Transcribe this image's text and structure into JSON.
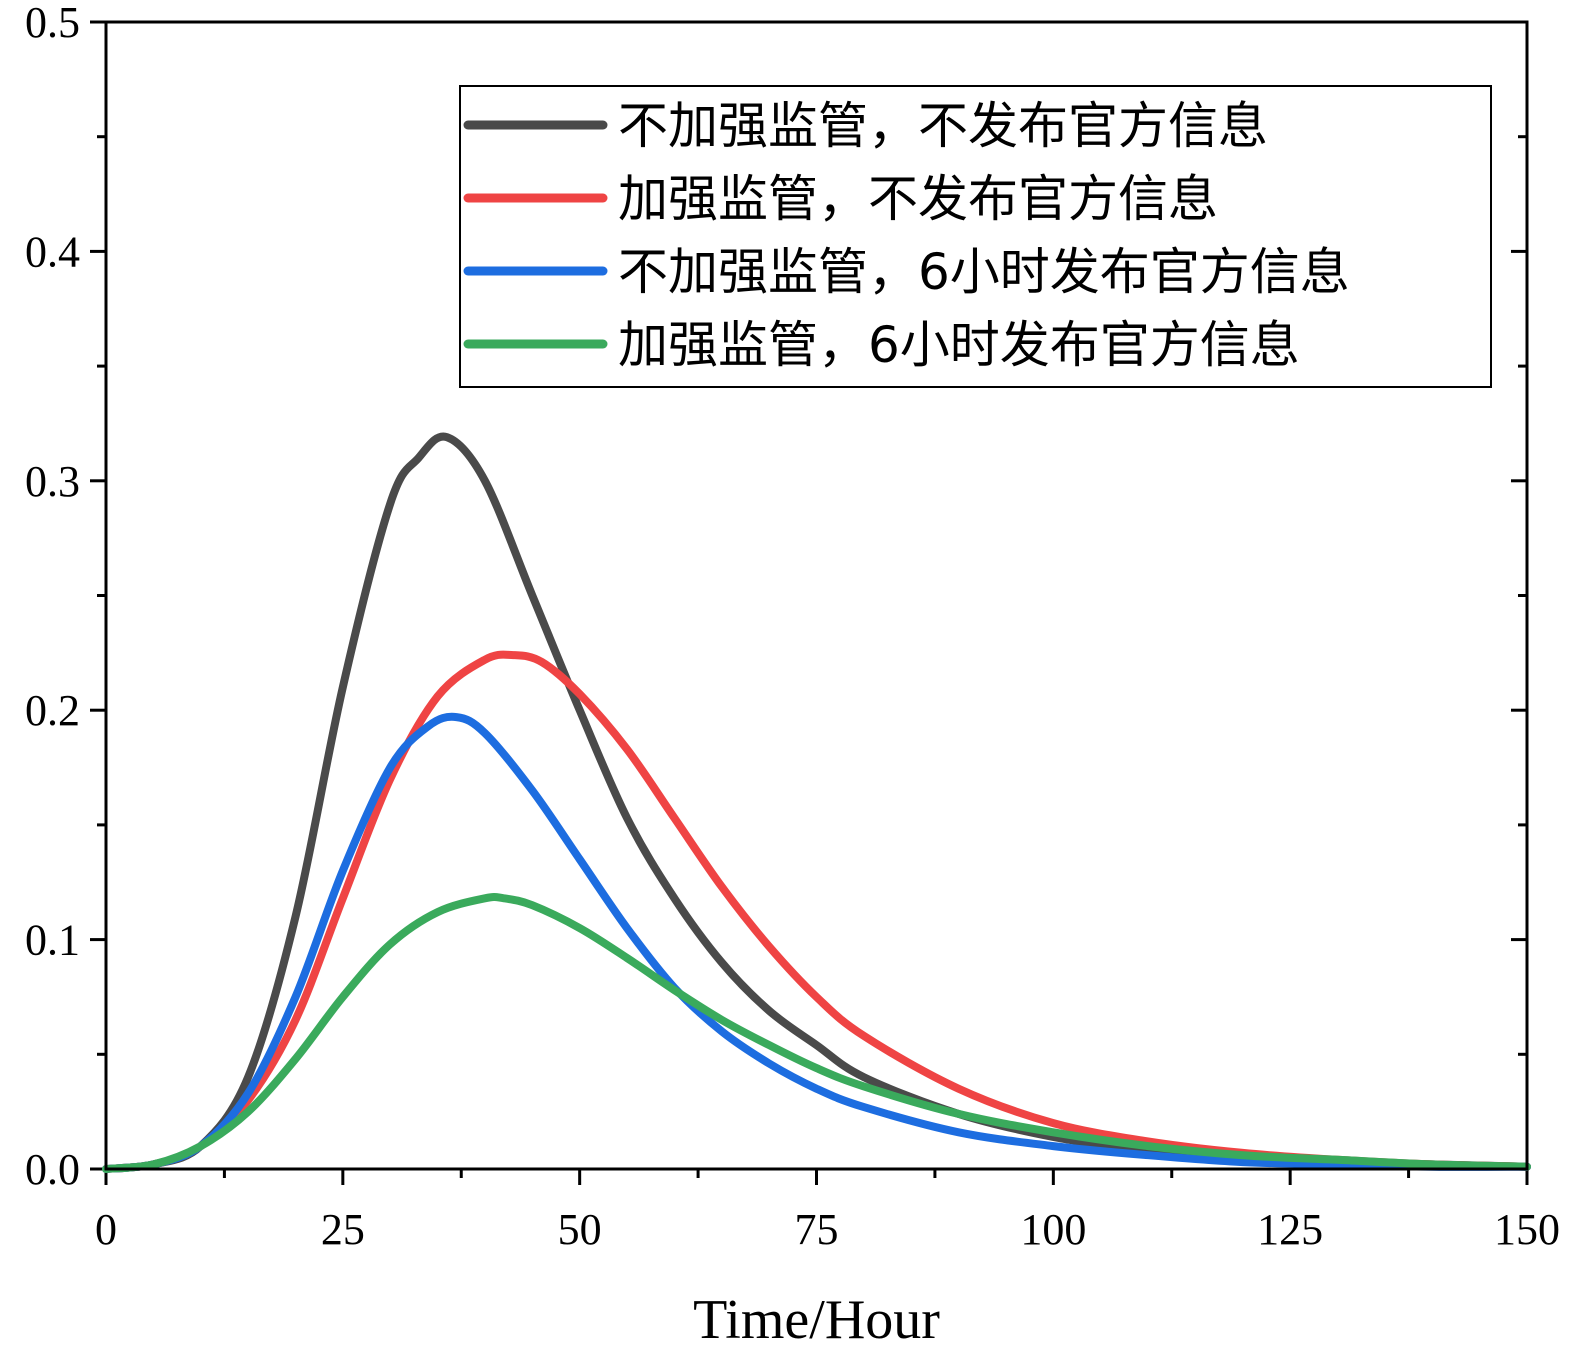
{
  "chart_data": {
    "type": "line",
    "title": "",
    "xlabel": "Time/Hour",
    "ylabel": "",
    "xlim": [
      0,
      150
    ],
    "ylim": [
      0,
      0.5
    ],
    "x_ticks": [
      0,
      25,
      50,
      75,
      100,
      125,
      150
    ],
    "x_tick_labels": [
      "0",
      "25",
      "50",
      "75",
      "100",
      "125",
      "150"
    ],
    "y_ticks": [
      0,
      0.1,
      0.2,
      0.3,
      0.4,
      0.5
    ],
    "y_tick_labels": [
      "0.0",
      "0.1",
      "0.2",
      "0.3",
      "0.4",
      "0.5"
    ],
    "grid": false,
    "legend_position": "top-right",
    "series": [
      {
        "name": "不加强监管，不发布官方信息",
        "color": "#4a4a4a",
        "x": [
          0,
          5,
          10,
          15,
          20,
          25,
          30,
          33,
          36,
          40,
          45,
          50,
          55,
          60,
          65,
          70,
          75,
          80,
          90,
          100,
          110,
          120,
          130,
          140,
          150
        ],
        "y": [
          0.0,
          0.002,
          0.01,
          0.04,
          0.11,
          0.21,
          0.29,
          0.31,
          0.319,
          0.3,
          0.25,
          0.2,
          0.153,
          0.118,
          0.09,
          0.069,
          0.054,
          0.04,
          0.024,
          0.014,
          0.008,
          0.005,
          0.003,
          0.002,
          0.001
        ]
      },
      {
        "name": "加强监管，不发布官方信息",
        "color": "#ef4444",
        "x": [
          0,
          5,
          10,
          15,
          20,
          25,
          30,
          35,
          40,
          43,
          46,
          50,
          55,
          60,
          65,
          70,
          75,
          80,
          90,
          100,
          110,
          120,
          130,
          140,
          150
        ],
        "y": [
          0.0,
          0.002,
          0.01,
          0.03,
          0.065,
          0.118,
          0.17,
          0.206,
          0.222,
          0.224,
          0.221,
          0.207,
          0.183,
          0.153,
          0.123,
          0.097,
          0.075,
          0.058,
          0.035,
          0.02,
          0.012,
          0.007,
          0.004,
          0.002,
          0.001
        ]
      },
      {
        "name": "不加强监管，6小时发布官方信息",
        "color": "#1d6de0",
        "x": [
          0,
          5,
          10,
          15,
          20,
          25,
          30,
          34,
          37,
          40,
          45,
          50,
          55,
          60,
          65,
          70,
          75,
          80,
          90,
          100,
          110,
          120,
          130,
          140,
          150
        ],
        "y": [
          0.0,
          0.002,
          0.01,
          0.033,
          0.075,
          0.13,
          0.175,
          0.193,
          0.197,
          0.19,
          0.165,
          0.135,
          0.105,
          0.079,
          0.06,
          0.046,
          0.035,
          0.027,
          0.016,
          0.01,
          0.006,
          0.003,
          0.002,
          0.001,
          0.001
        ]
      },
      {
        "name": "加强监管，6小时发布官方信息",
        "color": "#3aaa5c",
        "x": [
          0,
          5,
          10,
          15,
          20,
          25,
          30,
          35,
          40,
          42,
          45,
          50,
          55,
          60,
          65,
          70,
          75,
          80,
          90,
          100,
          110,
          120,
          130,
          140,
          150
        ],
        "y": [
          0.0,
          0.002,
          0.01,
          0.025,
          0.048,
          0.075,
          0.098,
          0.112,
          0.118,
          0.118,
          0.115,
          0.105,
          0.092,
          0.078,
          0.065,
          0.054,
          0.044,
          0.036,
          0.024,
          0.016,
          0.01,
          0.006,
          0.004,
          0.002,
          0.001
        ]
      }
    ]
  }
}
